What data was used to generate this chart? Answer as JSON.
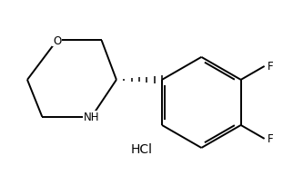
{
  "background_color": "#ffffff",
  "line_color": "#000000",
  "line_width": 1.4,
  "font_size_atom": 8.5,
  "font_size_hcl": 10,
  "hcl_text": "HCl",
  "O_label": "O",
  "NH_label": "NH",
  "F1_label": "F",
  "F2_label": "F",
  "wedge_n_lines": 7,
  "wedge_max_sep": 0.09
}
